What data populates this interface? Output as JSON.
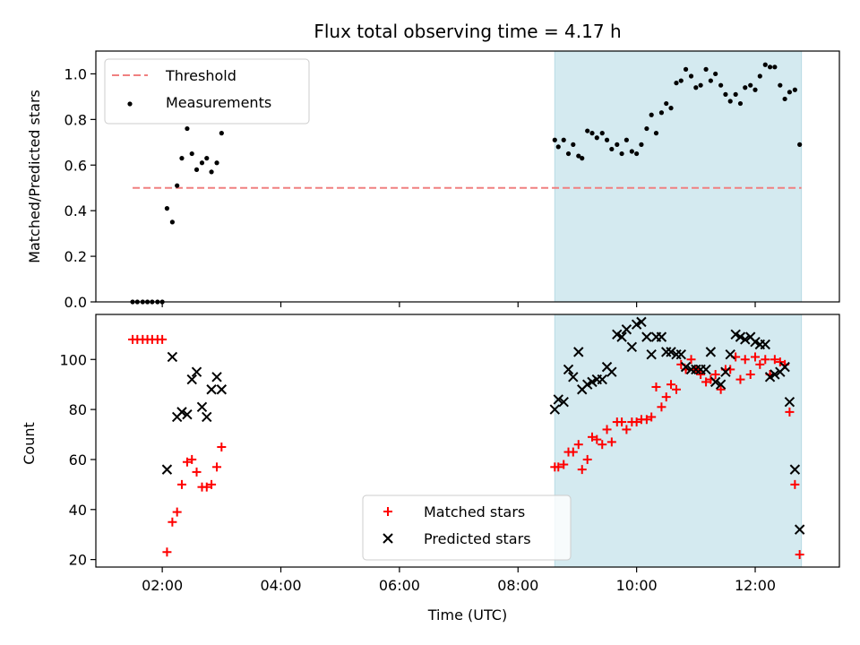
{
  "chart_data": {
    "title": "Flux total observing time = 4.17 h",
    "xlabel": "Time (UTC)",
    "x_ticks": [
      "02:00",
      "04:00",
      "06:00",
      "08:00",
      "10:00",
      "12:00"
    ],
    "x_tick_hours": [
      2,
      4,
      6,
      8,
      10,
      12
    ],
    "xlim_hours": [
      0.88,
      13.42
    ],
    "shaded_interval_hours": [
      8.62,
      12.78
    ],
    "shaded_color": "#d4eaf0",
    "panels": [
      {
        "type": "scatter",
        "ylabel": "Matched/Predicted stars",
        "ylim": [
          0.0,
          1.1
        ],
        "y_ticks": [
          0.0,
          0.2,
          0.4,
          0.6,
          0.8,
          1.0
        ],
        "y_tick_labels": [
          "0.0",
          "0.2",
          "0.4",
          "0.6",
          "0.8",
          "1.0"
        ],
        "legend_position": "top-left",
        "threshold": {
          "name": "Threshold",
          "value": 0.5,
          "x_range_hours": [
            1.5,
            12.78
          ],
          "color": "#f08080"
        },
        "series": [
          {
            "name": "Measurements",
            "marker": "dot",
            "color": "#000000",
            "x_hours": [
              1.5,
              1.58,
              1.67,
              1.75,
              1.83,
              1.92,
              2.0,
              2.08,
              2.17,
              2.25,
              2.33,
              2.42,
              2.5,
              2.58,
              2.67,
              2.75,
              2.83,
              2.92,
              3.0,
              8.62,
              8.68,
              8.77,
              8.85,
              8.93,
              9.02,
              9.08,
              9.17,
              9.25,
              9.33,
              9.42,
              9.5,
              9.58,
              9.67,
              9.75,
              9.83,
              9.92,
              10.0,
              10.08,
              10.17,
              10.25,
              10.33,
              10.42,
              10.5,
              10.58,
              10.67,
              10.75,
              10.83,
              10.92,
              11.0,
              11.08,
              11.17,
              11.25,
              11.33,
              11.42,
              11.5,
              11.58,
              11.67,
              11.75,
              11.83,
              11.92,
              12.0,
              12.08,
              12.17,
              12.25,
              12.33,
              12.42,
              12.5,
              12.58,
              12.67,
              12.75
            ],
            "y": [
              0.0,
              0.0,
              0.0,
              0.0,
              0.0,
              0.0,
              0.0,
              0.41,
              0.35,
              0.51,
              0.63,
              0.76,
              0.65,
              0.58,
              0.61,
              0.63,
              0.57,
              0.61,
              0.74,
              0.71,
              0.68,
              0.71,
              0.65,
              0.69,
              0.64,
              0.63,
              0.75,
              0.74,
              0.72,
              0.74,
              0.71,
              0.67,
              0.69,
              0.65,
              0.71,
              0.66,
              0.65,
              0.69,
              0.76,
              0.82,
              0.74,
              0.83,
              0.87,
              0.85,
              0.96,
              0.97,
              1.02,
              0.99,
              0.94,
              0.95,
              1.02,
              0.97,
              1.0,
              0.95,
              0.91,
              0.88,
              0.91,
              0.87,
              0.94,
              0.95,
              0.93,
              0.99,
              1.04,
              1.03,
              1.03,
              0.95,
              0.89,
              0.92,
              0.93,
              0.69
            ]
          }
        ]
      },
      {
        "type": "scatter",
        "ylabel": "Count",
        "ylim": [
          17,
          118
        ],
        "y_ticks": [
          20,
          40,
          60,
          80,
          100
        ],
        "y_tick_labels": [
          "20",
          "40",
          "60",
          "80",
          "100"
        ],
        "legend_position": "lower-center",
        "series": [
          {
            "name": "Matched stars",
            "marker": "plus",
            "color": "#ff0000",
            "x_hours": [
              1.5,
              1.58,
              1.67,
              1.75,
              1.83,
              1.92,
              2.0,
              2.08,
              2.17,
              2.25,
              2.33,
              2.42,
              2.5,
              2.58,
              2.67,
              2.75,
              2.83,
              2.92,
              3.0,
              8.62,
              8.68,
              8.77,
              8.85,
              8.93,
              9.02,
              9.08,
              9.17,
              9.25,
              9.33,
              9.42,
              9.5,
              9.58,
              9.67,
              9.75,
              9.83,
              9.92,
              10.0,
              10.08,
              10.17,
              10.25,
              10.33,
              10.42,
              10.5,
              10.58,
              10.67,
              10.75,
              10.83,
              10.92,
              11.0,
              11.08,
              11.17,
              11.25,
              11.33,
              11.42,
              11.5,
              11.58,
              11.67,
              11.75,
              11.83,
              11.92,
              12.0,
              12.08,
              12.17,
              12.25,
              12.33,
              12.42,
              12.5,
              12.58,
              12.67,
              12.75
            ],
            "y": [
              108,
              108,
              108,
              108,
              108,
              108,
              108,
              23,
              35,
              39,
              50,
              59,
              60,
              55,
              49,
              49,
              50,
              57,
              65,
              57,
              57,
              58,
              63,
              63,
              66,
              56,
              60,
              69,
              68,
              66,
              72,
              67,
              75,
              75,
              72,
              75,
              75,
              76,
              76,
              77,
              89,
              81,
              85,
              90,
              88,
              98,
              96,
              100,
              96,
              94,
              91,
              92,
              94,
              88,
              96,
              96,
              101,
              92,
              100,
              94,
              101,
              98,
              100,
              94,
              100,
              99,
              98,
              79,
              50,
              22
            ]
          },
          {
            "name": "Predicted stars",
            "marker": "x",
            "color": "#000000",
            "x_hours": [
              2.08,
              2.17,
              2.25,
              2.33,
              2.42,
              2.5,
              2.58,
              2.67,
              2.75,
              2.83,
              2.92,
              3.0,
              8.62,
              8.68,
              8.77,
              8.85,
              8.93,
              9.02,
              9.08,
              9.17,
              9.25,
              9.33,
              9.42,
              9.5,
              9.58,
              9.67,
              9.75,
              9.83,
              9.92,
              10.0,
              10.08,
              10.17,
              10.25,
              10.33,
              10.42,
              10.5,
              10.58,
              10.67,
              10.75,
              10.83,
              10.92,
              11.0,
              11.08,
              11.17,
              11.25,
              11.33,
              11.42,
              11.5,
              11.58,
              11.67,
              11.75,
              11.83,
              11.92,
              12.0,
              12.08,
              12.17,
              12.25,
              12.33,
              12.42,
              12.5,
              12.58,
              12.67,
              12.75
            ],
            "y": [
              56,
              101,
              77,
              79,
              78,
              92,
              95,
              81,
              77,
              88,
              93,
              88,
              80,
              84,
              83,
              96,
              93,
              103,
              88,
              90,
              91,
              92,
              92,
              97,
              95,
              110,
              109,
              112,
              105,
              114,
              115,
              109,
              102,
              109,
              109,
              103,
              103,
              102,
              102,
              97,
              96,
              96,
              96,
              96,
              103,
              91,
              90,
              95,
              102,
              110,
              109,
              108,
              109,
              107,
              106,
              106,
              93,
              94,
              95,
              97,
              83,
              56,
              32
            ]
          }
        ]
      }
    ]
  }
}
